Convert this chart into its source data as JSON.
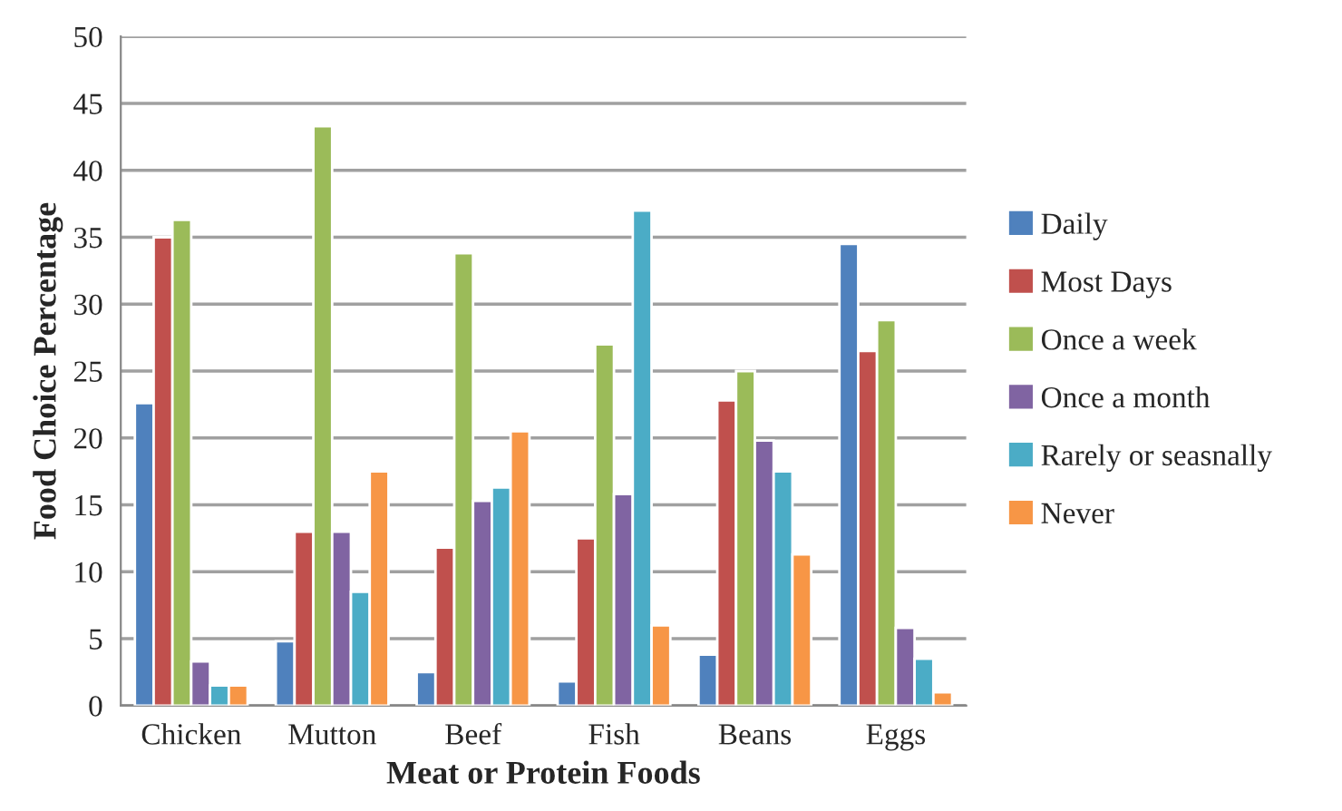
{
  "chart_data": {
    "type": "bar",
    "xlabel": "Meat or Protein Foods",
    "ylabel": "Food Choice Percentage",
    "categories": [
      "Chicken",
      "Mutton",
      "Beef",
      "Fish",
      "Beans",
      "Eggs"
    ],
    "series": [
      {
        "name": "Daily",
        "color": "#4f81bd",
        "values": [
          22.6,
          4.8,
          2.5,
          1.8,
          3.8,
          34.5
        ]
      },
      {
        "name": "Most Days",
        "color": "#c0504d",
        "values": [
          35,
          13,
          11.8,
          12.5,
          22.8,
          26.5
        ]
      },
      {
        "name": "Once a week",
        "color": "#9bbb59",
        "values": [
          36.3,
          43.3,
          33.8,
          27,
          25,
          28.8
        ]
      },
      {
        "name": "Once a month",
        "color": "#8064a2",
        "values": [
          3.3,
          13,
          15.3,
          15.8,
          19.8,
          5.8
        ]
      },
      {
        "name": "Rarely or seasnally",
        "color": "#4bacc6",
        "values": [
          1.5,
          8.5,
          16.3,
          37,
          17.5,
          3.5
        ]
      },
      {
        "name": "Never",
        "color": "#f79646",
        "values": [
          1.5,
          17.5,
          20.5,
          6,
          11.3,
          1
        ]
      }
    ],
    "ylim": [
      0,
      50
    ],
    "yticks": [
      0,
      5,
      10,
      15,
      20,
      25,
      30,
      35,
      40,
      45,
      50
    ],
    "grid": "y",
    "legend": "right"
  }
}
